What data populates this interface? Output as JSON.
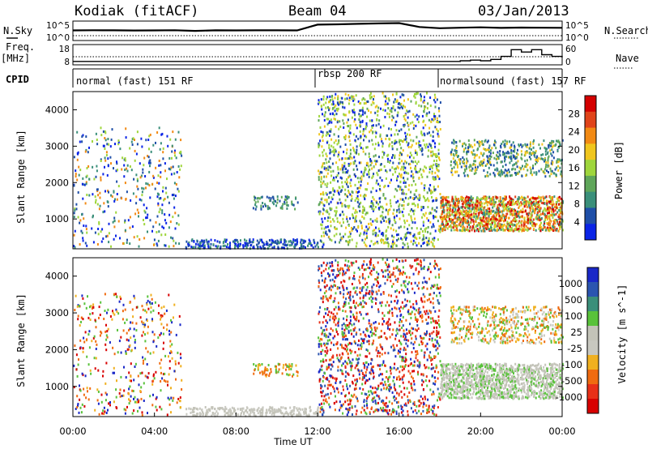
{
  "header": {
    "station": "Kodiak (fitACF)",
    "beam": "Beam 04",
    "date": "03/Jan/2013"
  },
  "left_labels": {
    "nsky": "N.Sky",
    "freq_line1": "Freq.",
    "freq_line2": "[MHz]",
    "cpid": "CPID"
  },
  "right_labels": {
    "nsearch": "N.Search",
    "nave": "Nave"
  },
  "cpid_segments": [
    {
      "label": "normal (fast) 151 RF",
      "start_hour": 0
    },
    {
      "label": "rbsp 200 RF",
      "start_hour": 12
    },
    {
      "label": "normalsound (fast) 157 RF",
      "start_hour": 18
    }
  ],
  "colors": {
    "power": [
      "#0a24e6",
      "#1f4fa8",
      "#3a8f7a",
      "#5fa65a",
      "#9fd63c",
      "#f0c61e",
      "#f28a14",
      "#e0441a",
      "#d40000"
    ],
    "velocity": [
      "#1a28c8",
      "#2b55b0",
      "#3b8f7a",
      "#59c23a",
      "#c3c3b8",
      "#c8c8c0",
      "#f0b020",
      "#f06b10",
      "#e83018",
      "#d80000"
    ]
  },
  "chart_data": [
    {
      "type": "line",
      "title": "N.Sky / N.Search",
      "ylim": [
        1,
        100000
      ],
      "y_scale": "log",
      "y_tick_labels": [
        "10^5",
        "10^0"
      ],
      "right_tick_labels": [
        "10^5",
        "10^0"
      ],
      "x_range_hours": [
        0,
        24
      ],
      "series": [
        {
          "name": "N.Sky",
          "x": [
            0,
            1,
            2,
            3,
            4,
            5,
            6,
            7,
            8,
            9,
            10,
            11,
            12,
            13,
            14,
            15,
            16,
            17,
            18,
            19,
            20,
            21,
            22,
            23,
            24
          ],
          "y": [
            400,
            450,
            420,
            380,
            410,
            440,
            300,
            420,
            410,
            430,
            420,
            410,
            12000,
            15000,
            20000,
            25000,
            30000,
            3000,
            1500,
            2000,
            2500,
            1800,
            2200,
            2000,
            1900
          ]
        }
      ]
    },
    {
      "type": "line",
      "title": "Freq. [MHz] / Nave",
      "ylim": [
        8,
        18
      ],
      "y_tick_labels": [
        "18",
        "8"
      ],
      "right_tick_labels": [
        "60",
        "0"
      ],
      "x_range_hours": [
        0,
        24
      ],
      "series": [
        {
          "name": "Nave",
          "x": [
            0,
            18,
            19,
            19.5,
            20,
            20.5,
            21,
            21.5,
            22,
            22.5,
            23,
            23.5,
            24
          ],
          "y": [
            10,
            10,
            12,
            14,
            12,
            16,
            25,
            45,
            38,
            45,
            30,
            25,
            22
          ]
        }
      ]
    },
    {
      "type": "heatmap",
      "title": "Power",
      "ylabel": "Slant Range [km]",
      "ylim": [
        180,
        4500
      ],
      "y_ticks": [
        1000,
        2000,
        3000,
        4000
      ],
      "x_range_hours": [
        0,
        24
      ],
      "colorbar_label": "Power [dB]",
      "colorbar_ticks": [
        "4",
        "8",
        "12",
        "16",
        "20",
        "24",
        "28"
      ]
    },
    {
      "type": "heatmap",
      "title": "Velocity",
      "ylabel": "Slant Range [km]",
      "xlabel": "Time UT",
      "ylim": [
        180,
        4500
      ],
      "y_ticks": [
        1000,
        2000,
        3000,
        4000
      ],
      "x_range_hours": [
        0,
        24
      ],
      "x_tick_labels": [
        "00:00",
        "04:00",
        "08:00",
        "12:00",
        "16:00",
        "20:00",
        "00:00"
      ],
      "colorbar_label": "Velocity [m s^-1]",
      "colorbar_ticks": [
        "1000",
        "500",
        "100",
        "25",
        "-25",
        "-100",
        "-500",
        "-1000"
      ]
    }
  ]
}
